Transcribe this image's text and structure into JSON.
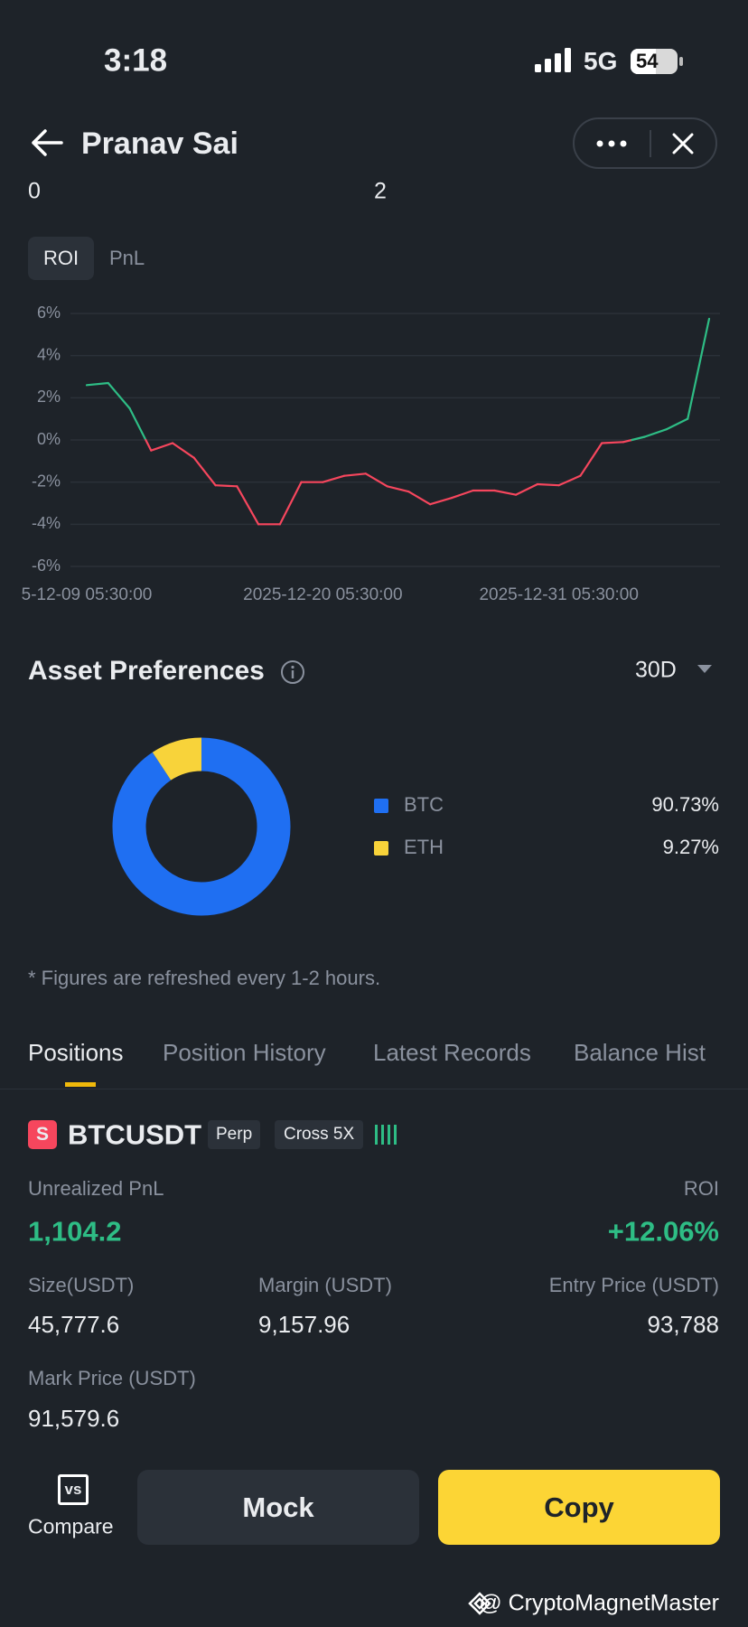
{
  "status_bar": {
    "time": "3:18",
    "network": "5G",
    "battery": "54"
  },
  "header": {
    "title": "Pranav Sai"
  },
  "stats": [
    "0",
    "2"
  ],
  "chart_tabs": [
    "ROI",
    "PnL"
  ],
  "roi_chart": {
    "type": "line",
    "categories": [
      "5-12-09 05:30:00",
      null,
      null,
      null,
      null,
      null,
      null,
      null,
      null,
      null,
      null,
      "2025-12-20 05:30:00",
      null,
      null,
      null,
      null,
      null,
      null,
      null,
      null,
      null,
      null,
      "2025-12-31 05:30:00",
      null,
      null,
      null,
      null,
      null,
      null,
      null
    ],
    "values": [
      2.6,
      2.7,
      1.5,
      -0.5,
      -0.15,
      -0.85,
      -2.15,
      -2.2,
      -4.0,
      -4.0,
      -2.0,
      -2.0,
      -1.7,
      -1.6,
      -2.2,
      -2.45,
      -3.05,
      -2.75,
      -2.4,
      -2.4,
      -2.6,
      -2.1,
      -2.15,
      -1.7,
      -0.15,
      -0.1,
      0.15,
      0.5,
      1.0,
      5.75
    ],
    "colors": {
      "positive": "#2ebd85",
      "negative": "#f6465d"
    },
    "ylim": [
      -6,
      6
    ],
    "yticks": [
      {
        "value": 6,
        "label": "6%"
      },
      {
        "value": 4,
        "label": "4%"
      },
      {
        "value": 2,
        "label": "2%"
      },
      {
        "value": 0,
        "label": "0%"
      },
      {
        "value": -2,
        "label": "-2%"
      },
      {
        "value": -4,
        "label": "-4%"
      },
      {
        "value": -6,
        "label": "-6%"
      }
    ],
    "grid": true
  },
  "asset_preferences": {
    "title": "Asset Preferences",
    "period": "30D",
    "chart": {
      "type": "pie",
      "categories": [
        "BTC",
        "ETH"
      ],
      "values": [
        90.73,
        9.27
      ],
      "value_labels": [
        "90.73%",
        "9.27%"
      ],
      "colors": [
        "#1f6ff2",
        "#f8d33a"
      ]
    },
    "note": "* Figures are refreshed every 1-2 hours."
  },
  "tabs": [
    "Positions",
    "Position History",
    "Latest Records",
    "Balance Hist"
  ],
  "position": {
    "icon": "S",
    "symbol": "BTCUSDT",
    "tags": [
      "Perp",
      "Cross 5X"
    ],
    "unrealized_pnl": {
      "label": "Unrealized PnL",
      "value": "1,104.2"
    },
    "roi": {
      "label": "ROI",
      "value": "+12.06%"
    },
    "size": {
      "label": "Size(USDT)",
      "value": "45,777.6"
    },
    "margin": {
      "label": "Margin (USDT)",
      "value": "9,157.96"
    },
    "entry_price": {
      "label": "Entry Price (USDT)",
      "value": "93,788"
    },
    "mark_price": {
      "label": "Mark Price (USDT)",
      "value": "91,579.6"
    }
  },
  "actions": {
    "compare_icon": "vs",
    "compare": "Compare",
    "mock": "Mock",
    "copy": "Copy"
  },
  "watermark": "@ CryptoMagnetMaster"
}
